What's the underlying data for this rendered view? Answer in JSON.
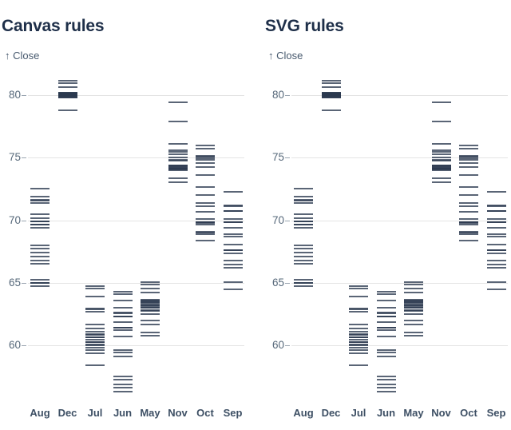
{
  "colors": {
    "background": "#ffffff",
    "heading": "#1e2f49",
    "axis_label": "#46586d",
    "tick_label": "#56687a",
    "month_label": "#3d4f64",
    "rule": "#2b3a50",
    "gridline": "#e4e4e4",
    "tick_mark": "#9aa5b1"
  },
  "chart_data": [
    {
      "type": "tick",
      "title": "Canvas rules",
      "ylabel": "↑ Close",
      "xlabel": "",
      "grid": true,
      "ylim": [
        56,
        81.5
      ],
      "y_ticks": [
        80,
        75,
        70,
        65,
        60
      ],
      "categories": [
        "Aug",
        "Dec",
        "Jul",
        "Jun",
        "May",
        "Nov",
        "Oct",
        "Sep"
      ],
      "months": [
        {
          "label": "Aug",
          "values": [
            72.52,
            71.9,
            71.63,
            71.55,
            71.35,
            70.46,
            70.18,
            69.93,
            69.9,
            69.65,
            69.62,
            69.39,
            68.0,
            67.71,
            67.41,
            67.11,
            66.79,
            66.49,
            65.27,
            65.01,
            65.0,
            64.76
          ]
        },
        {
          "label": "Dec",
          "values": [
            81.16,
            80.95,
            80.63,
            80.22,
            80.18,
            80.15,
            80.12,
            80.1,
            80.08,
            80.06,
            80.04,
            80.01,
            79.98,
            79.97,
            79.95,
            79.92,
            79.9,
            79.88,
            79.84,
            79.8,
            78.77
          ]
        },
        {
          "label": "Jul",
          "values": [
            64.72,
            64.51,
            63.87,
            62.91,
            62.88,
            62.7,
            61.63,
            61.36,
            61.08,
            60.87,
            60.85,
            60.65,
            60.63,
            60.46,
            60.25,
            60.23,
            60.04,
            59.99,
            59.82,
            59.61,
            59.33,
            58.43
          ]
        },
        {
          "label": "Jun",
          "values": [
            64.3,
            64.09,
            63.55,
            63.02,
            62.59,
            62.55,
            62.3,
            62.27,
            61.85,
            61.42,
            61.4,
            61.21,
            60.68,
            59.61,
            59.4,
            59.08,
            57.48,
            57.27,
            56.84,
            56.63,
            56.31
          ]
        },
        {
          "label": "May",
          "values": [
            65.04,
            64.87,
            64.51,
            64.19,
            63.66,
            63.6,
            63.5,
            63.45,
            63.4,
            63.23,
            63.2,
            63.1,
            63.02,
            63.0,
            62.8,
            62.76,
            62.49,
            61.95,
            61.63,
            61.0,
            60.78
          ]
        },
        {
          "label": "Nov",
          "values": [
            79.4,
            77.91,
            76.1,
            75.57,
            75.45,
            75.29,
            75.01,
            74.85,
            74.76,
            74.4,
            74.35,
            74.3,
            74.25,
            74.19,
            74.15,
            74.1,
            74.05,
            73.98,
            73.34,
            73.06
          ]
        },
        {
          "label": "Oct",
          "values": [
            75.98,
            75.7,
            75.13,
            75.05,
            74.98,
            74.81,
            74.55,
            74.23,
            73.64,
            72.68,
            72.04,
            71.4,
            71.12,
            70.65,
            70.07,
            69.87,
            69.83,
            69.8,
            69.62,
            69.09,
            69.0,
            68.87,
            68.4
          ]
        },
        {
          "label": "Sep",
          "values": [
            72.26,
            71.18,
            71.15,
            70.76,
            70.73,
            70.09,
            69.87,
            69.84,
            69.42,
            68.91,
            68.7,
            68.04,
            67.61,
            67.58,
            67.38,
            66.77,
            66.45,
            66.23,
            65.02,
            64.45
          ]
        }
      ]
    },
    {
      "type": "tick",
      "title": "SVG rules",
      "ylabel": "↑ Close",
      "xlabel": "",
      "grid": true,
      "ylim": [
        56,
        81.5
      ],
      "y_ticks": [
        80,
        75,
        70,
        65,
        60
      ],
      "categories": [
        "Aug",
        "Dec",
        "Jul",
        "Jun",
        "May",
        "Nov",
        "Oct",
        "Sep"
      ],
      "months": [
        {
          "label": "Aug",
          "values": [
            72.52,
            71.9,
            71.63,
            71.55,
            71.35,
            70.46,
            70.18,
            69.93,
            69.9,
            69.65,
            69.62,
            69.39,
            68.0,
            67.71,
            67.41,
            67.11,
            66.79,
            66.49,
            65.27,
            65.01,
            65.0,
            64.76
          ]
        },
        {
          "label": "Dec",
          "values": [
            81.16,
            80.95,
            80.63,
            80.22,
            80.18,
            80.15,
            80.12,
            80.1,
            80.08,
            80.06,
            80.04,
            80.01,
            79.98,
            79.97,
            79.95,
            79.92,
            79.9,
            79.88,
            79.84,
            79.8,
            78.77
          ]
        },
        {
          "label": "Jul",
          "values": [
            64.72,
            64.51,
            63.87,
            62.91,
            62.88,
            62.7,
            61.63,
            61.36,
            61.08,
            60.87,
            60.85,
            60.65,
            60.63,
            60.46,
            60.25,
            60.23,
            60.04,
            59.99,
            59.82,
            59.61,
            59.33,
            58.43
          ]
        },
        {
          "label": "Jun",
          "values": [
            64.3,
            64.09,
            63.55,
            63.02,
            62.59,
            62.55,
            62.3,
            62.27,
            61.85,
            61.42,
            61.4,
            61.21,
            60.68,
            59.61,
            59.4,
            59.08,
            57.48,
            57.27,
            56.84,
            56.63,
            56.31
          ]
        },
        {
          "label": "May",
          "values": [
            65.04,
            64.87,
            64.51,
            64.19,
            63.66,
            63.6,
            63.5,
            63.45,
            63.4,
            63.23,
            63.2,
            63.1,
            63.02,
            63.0,
            62.8,
            62.76,
            62.49,
            61.95,
            61.63,
            61.0,
            60.78
          ]
        },
        {
          "label": "Nov",
          "values": [
            79.4,
            77.91,
            76.1,
            75.57,
            75.45,
            75.29,
            75.01,
            74.85,
            74.76,
            74.4,
            74.35,
            74.3,
            74.25,
            74.19,
            74.15,
            74.1,
            74.05,
            73.98,
            73.34,
            73.06
          ]
        },
        {
          "label": "Oct",
          "values": [
            75.98,
            75.7,
            75.13,
            75.05,
            74.98,
            74.81,
            74.55,
            74.23,
            73.64,
            72.68,
            72.04,
            71.4,
            71.12,
            70.65,
            70.07,
            69.87,
            69.83,
            69.8,
            69.62,
            69.09,
            69.0,
            68.87,
            68.4
          ]
        },
        {
          "label": "Sep",
          "values": [
            72.26,
            71.18,
            71.15,
            70.76,
            70.73,
            70.09,
            69.87,
            69.84,
            69.42,
            68.91,
            68.7,
            68.04,
            67.61,
            67.58,
            67.38,
            66.77,
            66.45,
            66.23,
            65.02,
            64.45
          ]
        }
      ]
    }
  ]
}
